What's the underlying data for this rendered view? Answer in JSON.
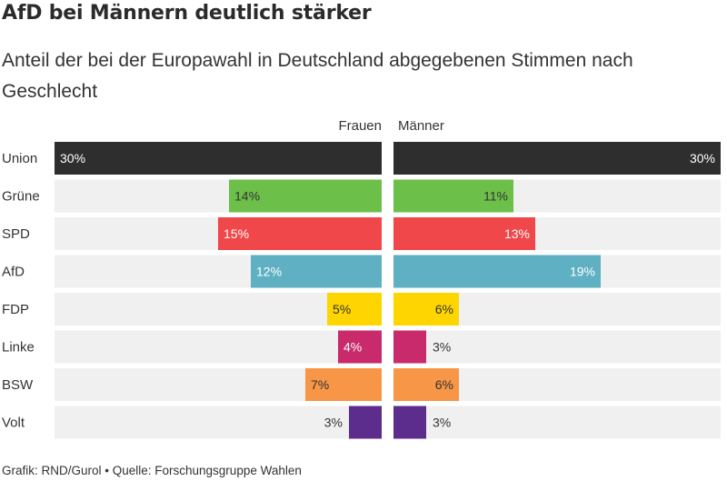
{
  "title": "AfD bei Männern deutlich stärker",
  "subtitle": "Anteil der bei der Europawahl in Deutschland abgegebenen Stimmen nach Geschlecht",
  "footer": "Grafik: RND/Gurol • Quelle: Forschungsgruppe Wahlen",
  "colors": {
    "track": "#f0f0f0",
    "Union": "#2e2e2e",
    "Grüne": "#6cc04a",
    "SPD": "#f0474a",
    "AfD": "#5fb0c2",
    "FDP": "#ffd500",
    "Linke": "#c92a6b",
    "BSW": "#f79646",
    "Volt": "#5c2d8c"
  },
  "chart_data": {
    "type": "bar",
    "orientation": "horizontal-mirrored",
    "categories": [
      "Union",
      "Grüne",
      "SPD",
      "AfD",
      "FDP",
      "Linke",
      "BSW",
      "Volt"
    ],
    "xlim": [
      0,
      30
    ],
    "series": [
      {
        "name": "Frauen",
        "values": [
          30,
          14,
          15,
          12,
          5,
          4,
          7,
          3
        ],
        "labels": [
          "30%",
          "14%",
          "15%",
          "12%",
          "5%",
          "4%",
          "7%",
          "3%"
        ]
      },
      {
        "name": "Männer",
        "values": [
          30,
          11,
          13,
          19,
          6,
          3,
          6,
          3
        ],
        "labels": [
          "30%",
          "11%",
          "13%",
          "19%",
          "6%",
          "3%",
          "6%",
          "3%"
        ]
      }
    ]
  }
}
